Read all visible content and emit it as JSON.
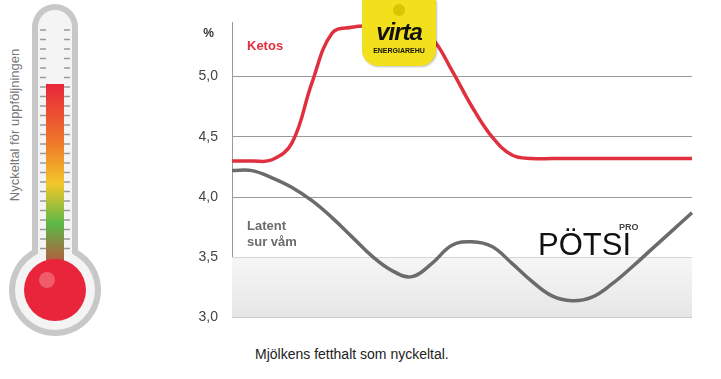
{
  "chart_data": {
    "type": "line",
    "categories": [
      null,
      null,
      null,
      null,
      null,
      null,
      null,
      null,
      null,
      null,
      null,
      null,
      null,
      null,
      null,
      null,
      null,
      null,
      null,
      null,
      null,
      null,
      null,
      null
    ],
    "series": [
      {
        "name": "Ketos",
        "color": "#e0303f",
        "values": [
          4.3,
          4.3,
          4.31,
          4.45,
          4.95,
          5.36,
          5.41,
          5.42,
          5.42,
          5.42,
          5.32,
          5.05,
          4.75,
          4.5,
          4.35,
          4.32,
          4.32,
          4.32,
          4.32,
          4.32,
          4.32,
          4.32,
          4.32,
          4.32
        ]
      },
      {
        "name": "Latent sur våm",
        "color": "#6b6b6b",
        "values": [
          4.22,
          4.22,
          4.16,
          4.08,
          3.97,
          3.83,
          3.67,
          3.51,
          3.39,
          3.34,
          3.45,
          3.6,
          3.63,
          3.59,
          3.45,
          3.3,
          3.18,
          3.14,
          3.17,
          3.28,
          3.42,
          3.57,
          3.72,
          3.87
        ]
      }
    ],
    "y_label": "%",
    "ylim": [
      3.0,
      5.45
    ],
    "yticks": [
      {
        "value": 3.0,
        "label": "3,0"
      },
      {
        "value": 3.5,
        "label": "3,5"
      },
      {
        "value": 4.0,
        "label": "4,0"
      },
      {
        "value": 4.5,
        "label": "4,5"
      },
      {
        "value": 5.0,
        "label": "5,0"
      }
    ],
    "grid": true,
    "tick_labels": "y",
    "annotations": [
      "virta",
      "ENERGIAREHU",
      "PÖTSI",
      "PRO",
      "Nyckeltal för uppföljningen"
    ],
    "caption": "Mjölkens fetthalt som nyckeltal."
  }
}
